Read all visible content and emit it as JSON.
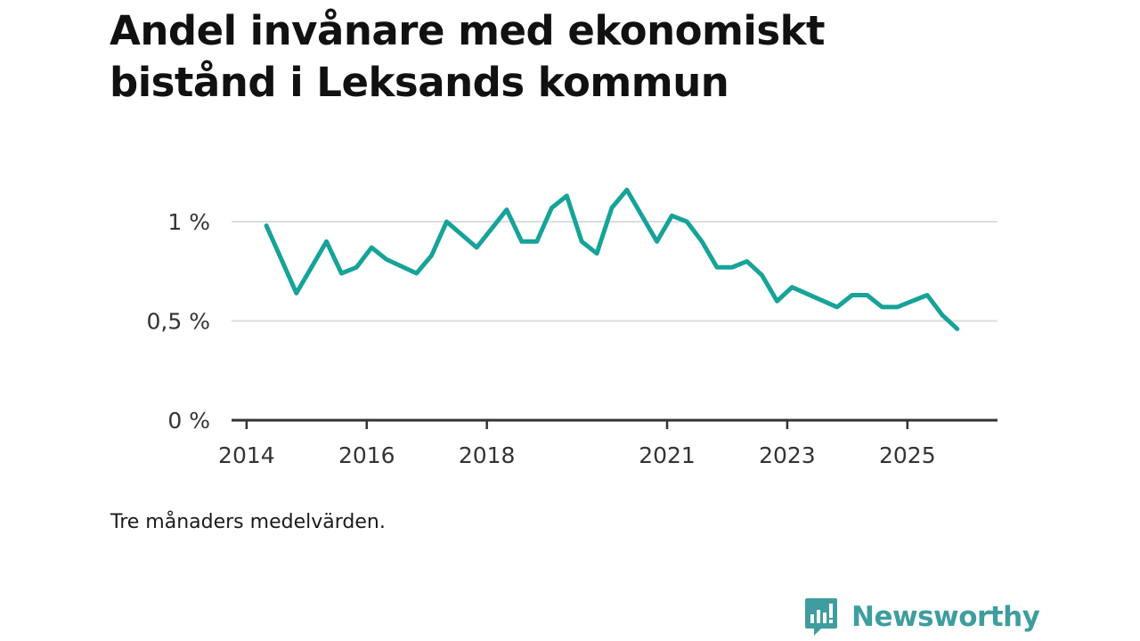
{
  "title": "Andel invånare med ekonomiskt bistånd i Leksands kommun",
  "note": "Tre månaders medelvärden.",
  "brand": "Newsworthy",
  "colors": {
    "line": "#17a398",
    "grid": "#dddddd",
    "axis": "#333333",
    "brand": "#3f9da0"
  },
  "chart_data": {
    "type": "line",
    "title": "Andel invånare med ekonomiskt bistånd i Leksands kommun",
    "xlabel": "",
    "ylabel": "",
    "xlim": [
      2013.75,
      2026.5
    ],
    "ylim": [
      0,
      1.0
    ],
    "y_ticks": [
      {
        "value": 0,
        "label": "0 %"
      },
      {
        "value": 0.5,
        "label": "0,5 %"
      },
      {
        "value": 1.0,
        "label": "1 %"
      }
    ],
    "x_ticks": [
      {
        "value": 2014,
        "label": "2014"
      },
      {
        "value": 2016,
        "label": "2016"
      },
      {
        "value": 2018,
        "label": "2018"
      },
      {
        "value": 2021,
        "label": "2021"
      },
      {
        "value": 2023,
        "label": "2023"
      },
      {
        "value": 2025,
        "label": "2025"
      }
    ],
    "grid": true,
    "series": [
      {
        "name": "Andel invånare med ekonomiskt bistånd",
        "x": [
          2014.33,
          2014.83,
          2015.33,
          2015.58,
          2015.83,
          2016.08,
          2016.33,
          2016.83,
          2017.08,
          2017.33,
          2017.83,
          2018.33,
          2018.58,
          2018.83,
          2019.08,
          2019.33,
          2019.58,
          2019.83,
          2020.08,
          2020.33,
          2020.83,
          2021.08,
          2021.33,
          2021.58,
          2021.83,
          2022.08,
          2022.33,
          2022.58,
          2022.83,
          2023.08,
          2023.83,
          2024.08,
          2024.33,
          2024.58,
          2024.83,
          2025.33,
          2025.58,
          2025.83
        ],
        "values": [
          0.98,
          0.64,
          0.9,
          0.74,
          0.77,
          0.87,
          0.81,
          0.74,
          0.83,
          1.0,
          0.87,
          1.06,
          0.9,
          0.9,
          1.07,
          1.13,
          0.9,
          0.84,
          1.07,
          1.16,
          0.9,
          1.03,
          1.0,
          0.9,
          0.77,
          0.77,
          0.8,
          0.73,
          0.6,
          0.67,
          0.57,
          0.63,
          0.63,
          0.57,
          0.57,
          0.63,
          0.53,
          0.46
        ]
      }
    ]
  }
}
